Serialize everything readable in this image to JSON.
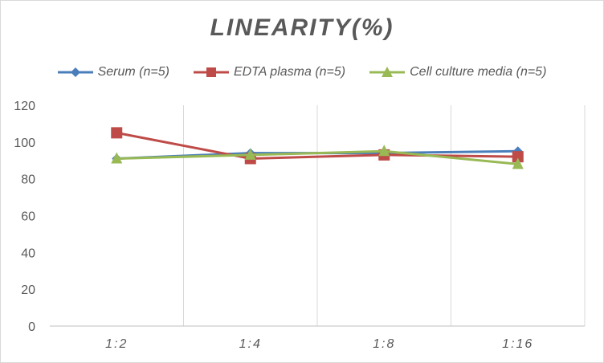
{
  "chart_data": {
    "type": "line",
    "title": "LINEARITY(%)",
    "xlabel": "",
    "ylabel": "",
    "categories": [
      "1:2",
      "1:4",
      "1:8",
      "1:16"
    ],
    "ylim": [
      0,
      120
    ],
    "yticks": [
      0,
      20,
      40,
      60,
      80,
      100,
      120
    ],
    "grid": "vertical",
    "legend_position": "top",
    "series": [
      {
        "name": "Serum (n=5)",
        "values": [
          91,
          94,
          94,
          95
        ],
        "color": "#4a7ebb",
        "marker": "diamond"
      },
      {
        "name": "EDTA plasma (n=5)",
        "values": [
          105,
          91,
          93,
          92
        ],
        "color": "#be4b48",
        "marker": "square"
      },
      {
        "name": "Cell culture media (n=5)",
        "values": [
          91,
          93,
          95,
          88
        ],
        "color": "#98b954",
        "marker": "triangle"
      }
    ]
  }
}
